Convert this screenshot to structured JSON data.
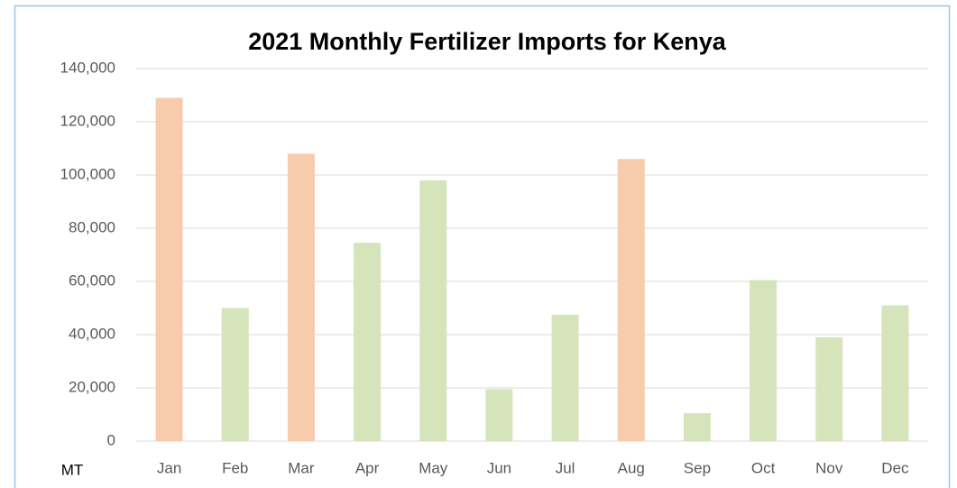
{
  "chart_data": {
    "type": "bar",
    "title": "2021 Monthly Fertilizer Imports for Kenya",
    "y_label": "MT",
    "categories": [
      "Jan",
      "Feb",
      "Mar",
      "Apr",
      "May",
      "Jun",
      "Jul",
      "Aug",
      "Sep",
      "Oct",
      "Nov",
      "Dec"
    ],
    "values": [
      129000,
      50000,
      108000,
      74500,
      98000,
      19500,
      47500,
      106000,
      10500,
      60500,
      39000,
      51000
    ],
    "colors": [
      "#f8cbad",
      "#d6e4bc",
      "#f8cbad",
      "#d6e4bc",
      "#d6e4bc",
      "#d6e4bc",
      "#d6e4bc",
      "#f8cbad",
      "#d6e4bc",
      "#d6e4bc",
      "#d6e4bc",
      "#d6e4bc"
    ],
    "ylim": [
      0,
      140000
    ],
    "yticks": [
      0,
      {
        "value": 20000,
        "label": "20,000"
      },
      {
        "value": 40000,
        "label": "40,000"
      },
      {
        "value": 60000,
        "label": "60,000"
      },
      {
        "value": 80000,
        "label": "80,000"
      },
      {
        "value": 100000,
        "label": "100,000"
      },
      {
        "value": 120000,
        "label": "120,000"
      },
      {
        "value": 140000,
        "label": "140,000"
      }
    ],
    "grid": true
  }
}
